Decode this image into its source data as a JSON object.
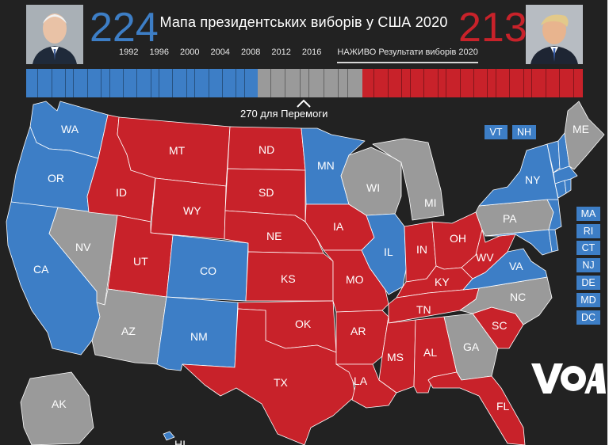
{
  "header": {
    "title": "Мапа президентських виборів у США 2020",
    "dem_count": "224",
    "rep_count": "213",
    "years": [
      "1992",
      "1996",
      "2000",
      "2004",
      "2008",
      "2012",
      "2016"
    ],
    "live_label": "НАЖИВО Результати виборів 2020",
    "win_label": "270 для Перемоги"
  },
  "colors": {
    "democrat": "#3d7ec6",
    "republican": "#c8222a",
    "undecided": "#9a9a9a",
    "background": "#222222"
  },
  "tally": {
    "dem": 224,
    "undecided": 101,
    "rep": 213,
    "to_win": 270,
    "total": 538
  },
  "states": {
    "WA": "WA",
    "OR": "OR",
    "CA": "CA",
    "NV": "NV",
    "ID": "ID",
    "MT": "MT",
    "WY": "WY",
    "UT": "UT",
    "AZ": "AZ",
    "CO": "CO",
    "NM": "NM",
    "ND": "ND",
    "SD": "SD",
    "NE": "NE",
    "KS": "KS",
    "OK": "OK",
    "TX": "TX",
    "MN": "MN",
    "IA": "IA",
    "MO": "MO",
    "AR": "AR",
    "LA": "LA",
    "WI": "WI",
    "IL": "IL",
    "MI": "MI",
    "IN": "IN",
    "OH": "OH",
    "KY": "KY",
    "TN": "TN",
    "MS": "MS",
    "AL": "AL",
    "GA": "GA",
    "FL": "FL",
    "SC": "SC",
    "NC": "NC",
    "VA": "VA",
    "WV": "WV",
    "PA": "PA",
    "NY": "NY",
    "ME": "ME",
    "AK": "AK",
    "HI": "HI"
  },
  "small_states": {
    "VT": "VT",
    "NH": "NH",
    "MA": "MA",
    "RI": "RI",
    "CT": "CT",
    "NJ": "NJ",
    "DE": "DE",
    "MD": "MD",
    "DC": "DC"
  },
  "logo": {
    "text": "VOA"
  }
}
